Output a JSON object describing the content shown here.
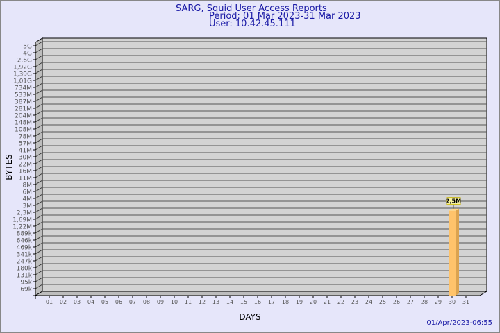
{
  "header": {
    "title": "SARG, Squid User Access Reports",
    "period": "Period: 01 Mar 2023-31 Mar 2023",
    "user": "User: 10.42.45.111"
  },
  "footer": {
    "timestamp": "01/Apr/2023-06:55"
  },
  "chart_data": {
    "type": "bar",
    "xlabel": "DAYS",
    "ylabel": "BYTES",
    "y_scale": "log",
    "grid": true,
    "y_ticks": [
      "5G",
      "4G",
      "2,6G",
      "1,92G",
      "1,39G",
      "1,01G",
      "734M",
      "533M",
      "387M",
      "281M",
      "204M",
      "148M",
      "108M",
      "78M",
      "57M",
      "41M",
      "30M",
      "22M",
      "16M",
      "11M",
      "8M",
      "6M",
      "4M",
      "3M",
      "2,3M",
      "1,69M",
      "1,22M",
      "889k",
      "646k",
      "469k",
      "341k",
      "247k",
      "180k",
      "131k",
      "95k",
      "69k"
    ],
    "categories": [
      "01",
      "02",
      "03",
      "04",
      "05",
      "06",
      "07",
      "08",
      "09",
      "10",
      "11",
      "12",
      "13",
      "14",
      "15",
      "16",
      "17",
      "18",
      "19",
      "20",
      "21",
      "22",
      "23",
      "24",
      "25",
      "26",
      "27",
      "28",
      "29",
      "30",
      "31"
    ],
    "bars": [
      {
        "day": "30",
        "value": 2500000,
        "label": "2,5M"
      }
    ],
    "colors": {
      "bar": "#ffc36b",
      "bar_side": "#dba350",
      "plot_bg": "#d3d3d3",
      "title": "#1a1aa6"
    }
  }
}
